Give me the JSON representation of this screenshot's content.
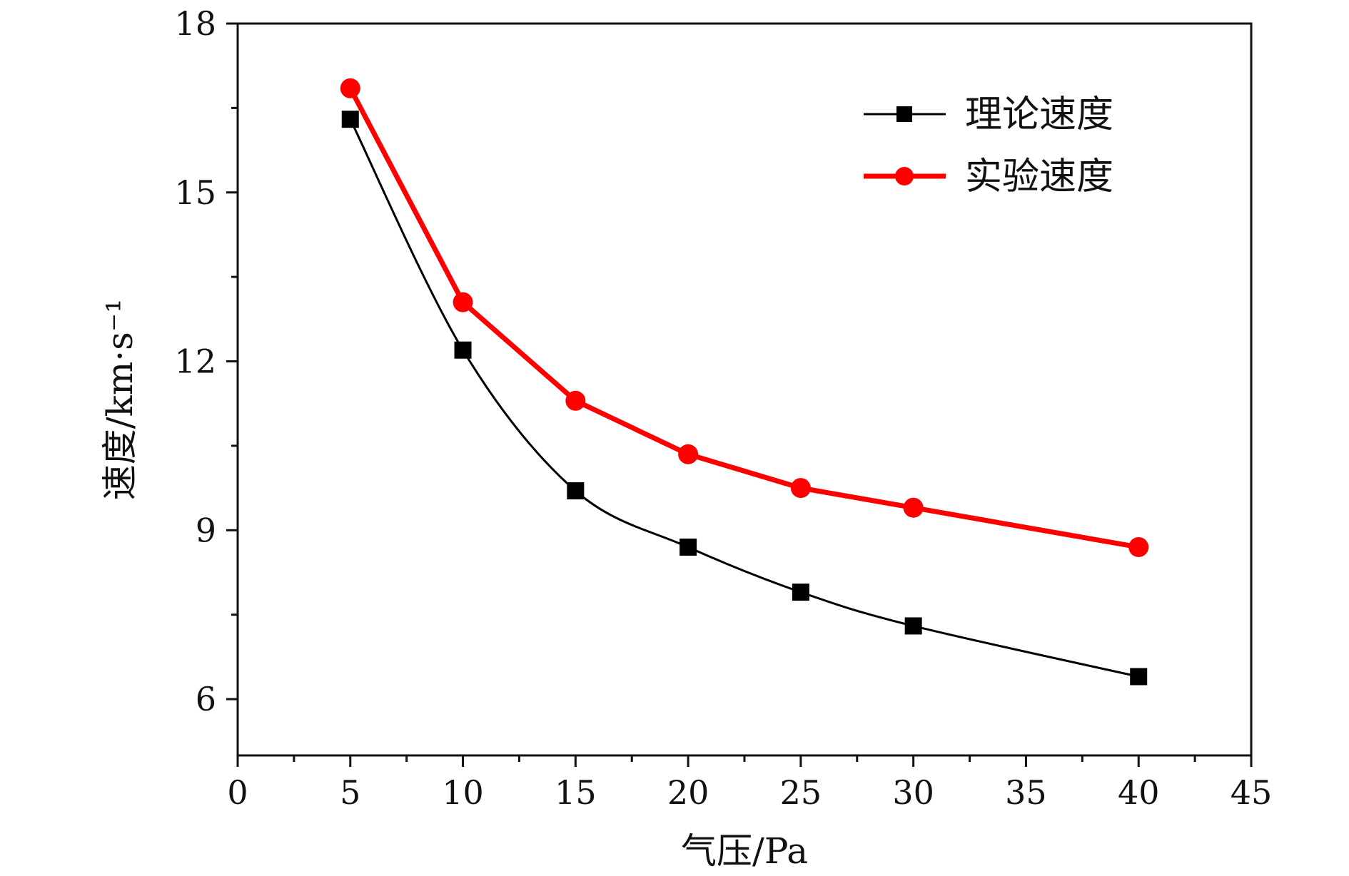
{
  "chart_data": {
    "type": "line",
    "title": "",
    "xlabel": "气压/Pa",
    "ylabel": "速度/km·s⁻¹",
    "xlim": [
      0,
      45
    ],
    "ylim": [
      5,
      18
    ],
    "x_ticks": [
      "0",
      "5",
      "10",
      "15",
      "20",
      "25",
      "30",
      "35",
      "40",
      "45"
    ],
    "y_ticks": [
      "6",
      "9",
      "12",
      "15",
      "18"
    ],
    "x": [
      5,
      10,
      15,
      20,
      25,
      30,
      40
    ],
    "series": [
      {
        "name": "理论速度",
        "values": [
          16.3,
          12.2,
          9.7,
          8.7,
          7.9,
          7.3,
          6.4
        ],
        "color": "#000000",
        "marker": "square",
        "smooth": true
      },
      {
        "name": "实验速度",
        "values": [
          16.85,
          13.05,
          11.3,
          10.35,
          9.75,
          9.4,
          8.7
        ],
        "color": "#ff0000",
        "marker": "circle",
        "smooth": false
      }
    ],
    "legend_position": "top-right",
    "grid": false
  }
}
